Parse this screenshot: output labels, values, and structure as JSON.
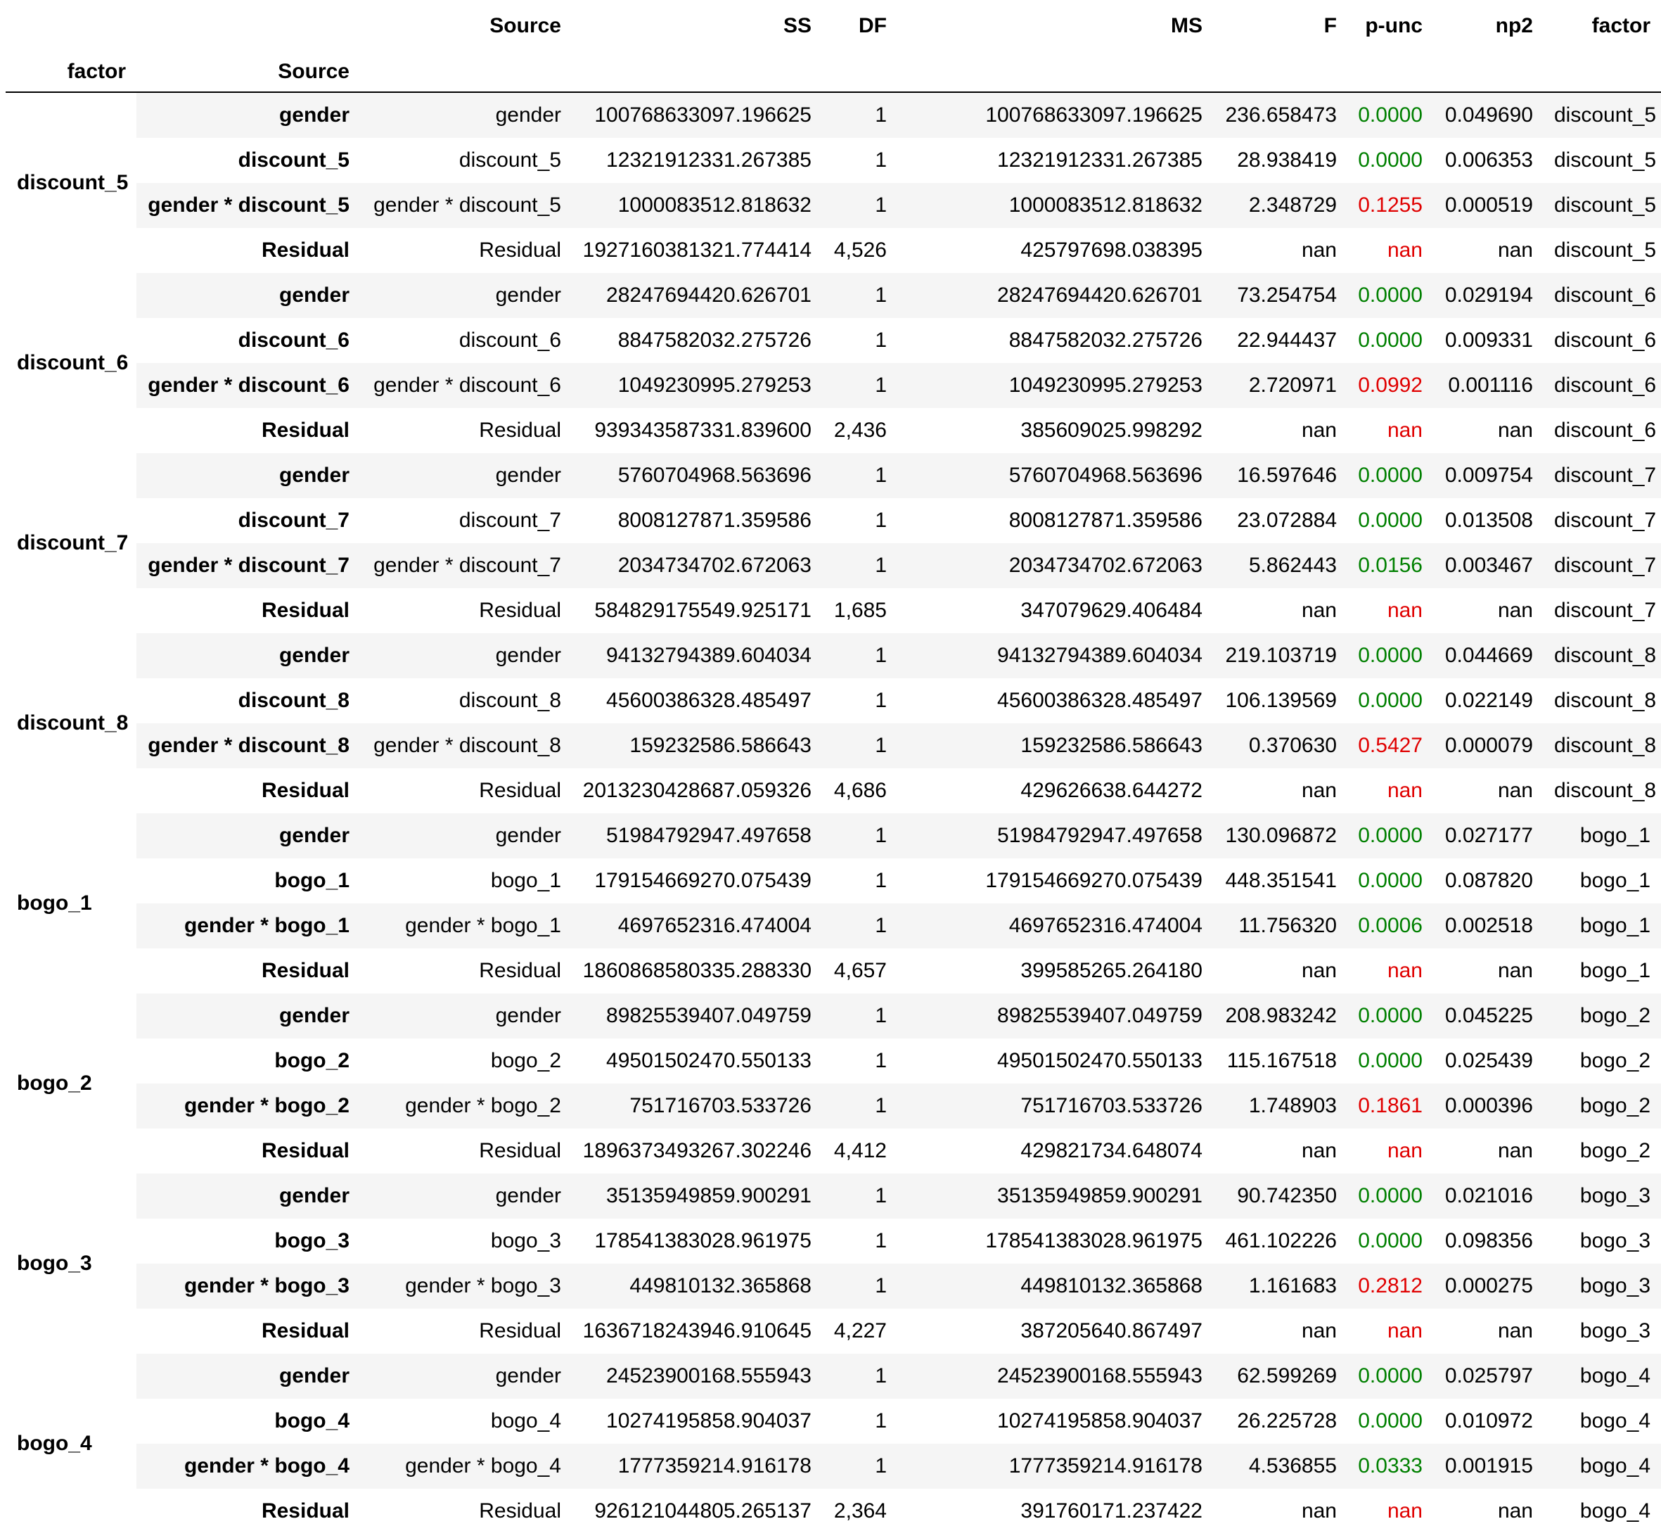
{
  "header": {
    "row1": [
      "",
      "",
      "Source",
      "SS",
      "DF",
      "MS",
      "F",
      "p-unc",
      "np2",
      "factor"
    ],
    "index_names": [
      "factor",
      "Source"
    ]
  },
  "groups": [
    {
      "factor": "discount_5",
      "rows": [
        {
          "label": "gender",
          "source": "gender",
          "ss": "100768633097.196625",
          "df": "1",
          "ms": "100768633097.196625",
          "f": "236.658473",
          "p": "0.0000",
          "np2": "0.049690",
          "factor": "discount_5"
        },
        {
          "label": "discount_5",
          "source": "discount_5",
          "ss": "12321912331.267385",
          "df": "1",
          "ms": "12321912331.267385",
          "f": "28.938419",
          "p": "0.0000",
          "np2": "0.006353",
          "factor": "discount_5"
        },
        {
          "label": "gender * discount_5",
          "source": "gender * discount_5",
          "ss": "1000083512.818632",
          "df": "1",
          "ms": "1000083512.818632",
          "f": "2.348729",
          "p": "0.1255",
          "np2": "0.000519",
          "factor": "discount_5"
        },
        {
          "label": "Residual",
          "source": "Residual",
          "ss": "1927160381321.774414",
          "df": "4,526",
          "ms": "425797698.038395",
          "f": "nan",
          "p": "nan",
          "np2": "nan",
          "factor": "discount_5"
        }
      ]
    },
    {
      "factor": "discount_6",
      "rows": [
        {
          "label": "gender",
          "source": "gender",
          "ss": "28247694420.626701",
          "df": "1",
          "ms": "28247694420.626701",
          "f": "73.254754",
          "p": "0.0000",
          "np2": "0.029194",
          "factor": "discount_6"
        },
        {
          "label": "discount_6",
          "source": "discount_6",
          "ss": "8847582032.275726",
          "df": "1",
          "ms": "8847582032.275726",
          "f": "22.944437",
          "p": "0.0000",
          "np2": "0.009331",
          "factor": "discount_6"
        },
        {
          "label": "gender * discount_6",
          "source": "gender * discount_6",
          "ss": "1049230995.279253",
          "df": "1",
          "ms": "1049230995.279253",
          "f": "2.720971",
          "p": "0.0992",
          "np2": "0.001116",
          "factor": "discount_6"
        },
        {
          "label": "Residual",
          "source": "Residual",
          "ss": "939343587331.839600",
          "df": "2,436",
          "ms": "385609025.998292",
          "f": "nan",
          "p": "nan",
          "np2": "nan",
          "factor": "discount_6"
        }
      ]
    },
    {
      "factor": "discount_7",
      "rows": [
        {
          "label": "gender",
          "source": "gender",
          "ss": "5760704968.563696",
          "df": "1",
          "ms": "5760704968.563696",
          "f": "16.597646",
          "p": "0.0000",
          "np2": "0.009754",
          "factor": "discount_7"
        },
        {
          "label": "discount_7",
          "source": "discount_7",
          "ss": "8008127871.359586",
          "df": "1",
          "ms": "8008127871.359586",
          "f": "23.072884",
          "p": "0.0000",
          "np2": "0.013508",
          "factor": "discount_7"
        },
        {
          "label": "gender * discount_7",
          "source": "gender * discount_7",
          "ss": "2034734702.672063",
          "df": "1",
          "ms": "2034734702.672063",
          "f": "5.862443",
          "p": "0.0156",
          "np2": "0.003467",
          "factor": "discount_7"
        },
        {
          "label": "Residual",
          "source": "Residual",
          "ss": "584829175549.925171",
          "df": "1,685",
          "ms": "347079629.406484",
          "f": "nan",
          "p": "nan",
          "np2": "nan",
          "factor": "discount_7"
        }
      ]
    },
    {
      "factor": "discount_8",
      "rows": [
        {
          "label": "gender",
          "source": "gender",
          "ss": "94132794389.604034",
          "df": "1",
          "ms": "94132794389.604034",
          "f": "219.103719",
          "p": "0.0000",
          "np2": "0.044669",
          "factor": "discount_8"
        },
        {
          "label": "discount_8",
          "source": "discount_8",
          "ss": "45600386328.485497",
          "df": "1",
          "ms": "45600386328.485497",
          "f": "106.139569",
          "p": "0.0000",
          "np2": "0.022149",
          "factor": "discount_8"
        },
        {
          "label": "gender * discount_8",
          "source": "gender * discount_8",
          "ss": "159232586.586643",
          "df": "1",
          "ms": "159232586.586643",
          "f": "0.370630",
          "p": "0.5427",
          "np2": "0.000079",
          "factor": "discount_8"
        },
        {
          "label": "Residual",
          "source": "Residual",
          "ss": "2013230428687.059326",
          "df": "4,686",
          "ms": "429626638.644272",
          "f": "nan",
          "p": "nan",
          "np2": "nan",
          "factor": "discount_8"
        }
      ]
    },
    {
      "factor": "bogo_1",
      "rows": [
        {
          "label": "gender",
          "source": "gender",
          "ss": "51984792947.497658",
          "df": "1",
          "ms": "51984792947.497658",
          "f": "130.096872",
          "p": "0.0000",
          "np2": "0.027177",
          "factor": "bogo_1"
        },
        {
          "label": "bogo_1",
          "source": "bogo_1",
          "ss": "179154669270.075439",
          "df": "1",
          "ms": "179154669270.075439",
          "f": "448.351541",
          "p": "0.0000",
          "np2": "0.087820",
          "factor": "bogo_1"
        },
        {
          "label": "gender * bogo_1",
          "source": "gender * bogo_1",
          "ss": "4697652316.474004",
          "df": "1",
          "ms": "4697652316.474004",
          "f": "11.756320",
          "p": "0.0006",
          "np2": "0.002518",
          "factor": "bogo_1"
        },
        {
          "label": "Residual",
          "source": "Residual",
          "ss": "1860868580335.288330",
          "df": "4,657",
          "ms": "399585265.264180",
          "f": "nan",
          "p": "nan",
          "np2": "nan",
          "factor": "bogo_1"
        }
      ]
    },
    {
      "factor": "bogo_2",
      "rows": [
        {
          "label": "gender",
          "source": "gender",
          "ss": "89825539407.049759",
          "df": "1",
          "ms": "89825539407.049759",
          "f": "208.983242",
          "p": "0.0000",
          "np2": "0.045225",
          "factor": "bogo_2"
        },
        {
          "label": "bogo_2",
          "source": "bogo_2",
          "ss": "49501502470.550133",
          "df": "1",
          "ms": "49501502470.550133",
          "f": "115.167518",
          "p": "0.0000",
          "np2": "0.025439",
          "factor": "bogo_2"
        },
        {
          "label": "gender * bogo_2",
          "source": "gender * bogo_2",
          "ss": "751716703.533726",
          "df": "1",
          "ms": "751716703.533726",
          "f": "1.748903",
          "p": "0.1861",
          "np2": "0.000396",
          "factor": "bogo_2"
        },
        {
          "label": "Residual",
          "source": "Residual",
          "ss": "1896373493267.302246",
          "df": "4,412",
          "ms": "429821734.648074",
          "f": "nan",
          "p": "nan",
          "np2": "nan",
          "factor": "bogo_2"
        }
      ]
    },
    {
      "factor": "bogo_3",
      "rows": [
        {
          "label": "gender",
          "source": "gender",
          "ss": "35135949859.900291",
          "df": "1",
          "ms": "35135949859.900291",
          "f": "90.742350",
          "p": "0.0000",
          "np2": "0.021016",
          "factor": "bogo_3"
        },
        {
          "label": "bogo_3",
          "source": "bogo_3",
          "ss": "178541383028.961975",
          "df": "1",
          "ms": "178541383028.961975",
          "f": "461.102226",
          "p": "0.0000",
          "np2": "0.098356",
          "factor": "bogo_3"
        },
        {
          "label": "gender * bogo_3",
          "source": "gender * bogo_3",
          "ss": "449810132.365868",
          "df": "1",
          "ms": "449810132.365868",
          "f": "1.161683",
          "p": "0.2812",
          "np2": "0.000275",
          "factor": "bogo_3"
        },
        {
          "label": "Residual",
          "source": "Residual",
          "ss": "1636718243946.910645",
          "df": "4,227",
          "ms": "387205640.867497",
          "f": "nan",
          "p": "nan",
          "np2": "nan",
          "factor": "bogo_3"
        }
      ]
    },
    {
      "factor": "bogo_4",
      "rows": [
        {
          "label": "gender",
          "source": "gender",
          "ss": "24523900168.555943",
          "df": "1",
          "ms": "24523900168.555943",
          "f": "62.599269",
          "p": "0.0000",
          "np2": "0.025797",
          "factor": "bogo_4"
        },
        {
          "label": "bogo_4",
          "source": "bogo_4",
          "ss": "10274195858.904037",
          "df": "1",
          "ms": "10274195858.904037",
          "f": "26.225728",
          "p": "0.0000",
          "np2": "0.010972",
          "factor": "bogo_4"
        },
        {
          "label": "gender * bogo_4",
          "source": "gender * bogo_4",
          "ss": "1777359214.916178",
          "df": "1",
          "ms": "1777359214.916178",
          "f": "4.536855",
          "p": "0.0333",
          "np2": "0.001915",
          "factor": "bogo_4"
        },
        {
          "label": "Residual",
          "source": "Residual",
          "ss": "926121044805.265137",
          "df": "2,364",
          "ms": "391760171.237422",
          "f": "nan",
          "p": "nan",
          "np2": "nan",
          "factor": "bogo_4"
        }
      ]
    }
  ],
  "colors": {
    "p_significant": "#008000",
    "p_not_significant": "#e00000",
    "stripe": "#f5f5f5"
  }
}
